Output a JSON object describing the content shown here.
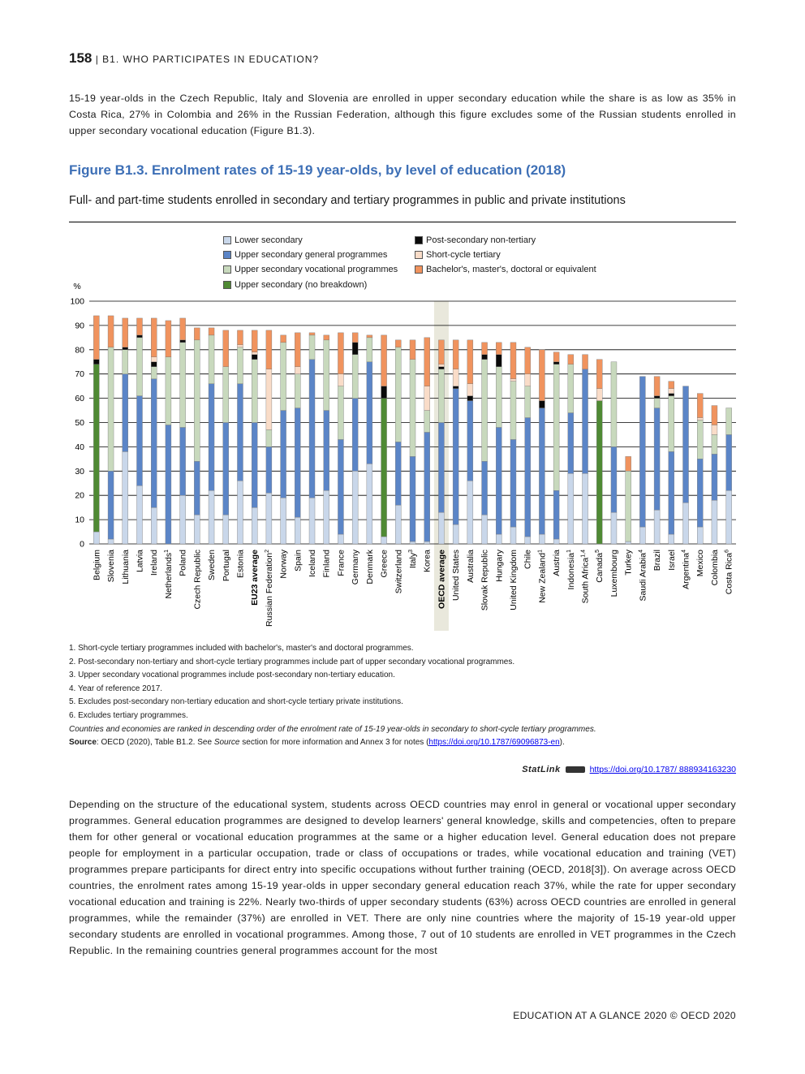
{
  "header": {
    "page_number": "158",
    "section": "| B1. WHO PARTICIPATES IN EDUCATION?"
  },
  "intro_paragraph": "15-19 year-olds in the Czech Republic, Italy and Slovenia are enrolled in upper secondary education while the share is as low as 35% in Costa Rica, 27% in Colombia and 26% in the Russian Federation, although this figure excludes some of the Russian students enrolled in upper secondary vocational education (Figure B1.3).",
  "figure": {
    "title": "Figure B1.3. Enrolment rates of 15-19 year-olds, by level of education (2018)",
    "subtitle": "Full- and part-time students enrolled in secondary and tertiary programmes in public and private institutions"
  },
  "chart_data": {
    "type": "bar",
    "stacked": true,
    "ylabel": "%",
    "ylim": [
      0,
      100
    ],
    "yticks": [
      0,
      10,
      20,
      30,
      40,
      50,
      60,
      70,
      80,
      90,
      100
    ],
    "grid": true,
    "legend_position": "top",
    "highlight_category": "OECD average",
    "categories": [
      "Belgium",
      "Slovenia",
      "Lithuania",
      "Latvia",
      "Ireland",
      "Netherlands",
      "Poland",
      "Czech Republic",
      "Sweden",
      "Portugal",
      "Estonia",
      "EU23 average",
      "Russian Federation",
      "Norway",
      "Spain",
      "Iceland",
      "Finland",
      "France",
      "Germany",
      "Denmark",
      "Greece",
      "Switzerland",
      "Italy",
      "Korea",
      "OECD average",
      "United States",
      "Australia",
      "Slovak Republic",
      "Hungary",
      "United Kingdom",
      "Chile",
      "New Zealand",
      "Austria",
      "Indonesia",
      "South Africa",
      "Canada",
      "Luxembourg",
      "Turkey",
      "Saudi Arabia",
      "Brazil",
      "Israel",
      "Argentina",
      "Mexico",
      "Colombia",
      "Costa Rica"
    ],
    "category_notes": [
      "",
      "",
      "",
      "",
      "",
      "1",
      "",
      "",
      "",
      "",
      "",
      "",
      "2",
      "",
      "",
      "",
      "",
      "",
      "",
      "",
      "",
      "",
      "3",
      "",
      "",
      "",
      "",
      "",
      "",
      "",
      "",
      "1",
      "",
      "1",
      "1,4",
      "5",
      "",
      "",
      "4",
      "",
      "",
      "4",
      "",
      "",
      "6"
    ],
    "bold_categories": [
      "EU23 average",
      "OECD average"
    ],
    "series": [
      {
        "name": "Lower secondary",
        "color": "#c9d7ea",
        "values": [
          5,
          2,
          38,
          24,
          15,
          0,
          20,
          12,
          22,
          12,
          26,
          15,
          21,
          19,
          11,
          19,
          22,
          4,
          30,
          33,
          3,
          16,
          1,
          1,
          13,
          8,
          26,
          12,
          4,
          7,
          3,
          4,
          2,
          29,
          29,
          0,
          13,
          1,
          7,
          14,
          4,
          17,
          7,
          18,
          22
        ]
      },
      {
        "name": "Upper secondary general programmes",
        "color": "#5b85c7",
        "values": [
          0,
          28,
          32,
          37,
          53,
          49,
          28,
          22,
          44,
          38,
          40,
          35,
          19,
          36,
          45,
          57,
          33,
          39,
          30,
          42,
          0,
          26,
          35,
          45,
          37,
          56,
          33,
          22,
          44,
          36,
          49,
          52,
          20,
          25,
          43,
          0,
          27,
          0,
          62,
          42,
          34,
          48,
          28,
          19,
          23
        ]
      },
      {
        "name": "Upper secondary vocational programmes",
        "color": "#c8d9bd",
        "values": [
          0,
          51,
          10,
          24,
          5,
          28,
          35,
          50,
          20,
          23,
          15,
          26,
          7,
          28,
          14,
          10,
          29,
          22,
          18,
          10,
          0,
          39,
          40,
          9,
          22,
          0,
          0,
          42,
          25,
          24,
          13,
          0,
          52,
          20,
          0,
          0,
          35,
          29,
          0,
          4,
          23,
          0,
          16,
          8,
          11
        ]
      },
      {
        "name": "Upper secondary (no breakdown)",
        "color": "#4f8a34",
        "values": [
          69,
          0,
          0,
          0,
          0,
          0,
          0,
          0,
          0,
          0,
          0,
          0,
          0,
          0,
          0,
          0,
          0,
          0,
          0,
          0,
          57,
          0,
          0,
          0,
          0,
          0,
          0,
          0,
          0,
          0,
          0,
          0,
          0,
          0,
          0,
          59,
          0,
          0,
          0,
          0,
          0,
          0,
          0,
          0,
          0
        ]
      },
      {
        "name": "Post-secondary non-tertiary",
        "color": "#0a0a0a",
        "values": [
          2,
          0,
          1,
          1,
          2,
          0,
          1,
          0,
          0,
          0,
          0,
          2,
          0,
          0,
          0,
          0,
          0,
          0,
          5,
          0,
          5,
          0,
          0,
          0,
          1,
          1,
          2,
          2,
          5,
          0,
          0,
          3,
          1,
          0,
          0,
          0,
          0,
          0,
          0,
          1,
          1,
          0,
          0,
          0,
          0
        ]
      },
      {
        "name": "Short-cycle tertiary",
        "color": "#f9dcc8",
        "values": [
          0,
          0,
          0,
          0,
          2,
          0,
          0,
          0,
          0,
          0,
          1,
          1,
          25,
          0,
          3,
          0,
          0,
          5,
          0,
          0,
          0,
          0,
          0,
          10,
          1,
          7,
          5,
          0,
          0,
          1,
          5,
          0,
          0,
          0,
          0,
          5,
          0,
          0,
          0,
          0,
          2,
          0,
          1,
          4,
          0
        ]
      },
      {
        "name": "Bachelor's, master's, doctoral or equivalent",
        "color": "#f0935e",
        "values": [
          18,
          13,
          12,
          7,
          16,
          15,
          9,
          5,
          3,
          15,
          6,
          9,
          16,
          3,
          14,
          1,
          2,
          17,
          4,
          1,
          21,
          3,
          8,
          20,
          10,
          12,
          18,
          5,
          5,
          15,
          11,
          21,
          4,
          4,
          6,
          12,
          0,
          6,
          0,
          8,
          3,
          0,
          10,
          8,
          0
        ]
      }
    ]
  },
  "notes": [
    "1. Short-cycle tertiary programmes included with bachelor's, master's and doctoral programmes.",
    "2. Post-secondary non-tertiary and short-cycle tertiary programmes include part of upper secondary vocational programmes.",
    "3. Upper secondary vocational programmes include post-secondary non-tertiary education.",
    "4. Year of reference 2017.",
    "5. Excludes post-secondary non-tertiary education and short-cycle tertiary private institutions.",
    "6. Excludes tertiary programmes."
  ],
  "ranking_note": "Countries and economies are ranked in descending order of the enrolment rate of 15-19 year-olds in secondary to short-cycle tertiary programmes.",
  "source": {
    "label": "Source",
    "text_before": ": OECD (2020), Table B1.2. See ",
    "italic": "Source",
    "text_after": " section for more information and Annex 3 for notes (",
    "link": "https://doi.org/10.1787/69096873-en",
    "close": ")."
  },
  "statlink": {
    "brand": "StatLink",
    "url": "https://doi.org/10.1787/ 888934163230"
  },
  "body_paragraph": "Depending on the structure of the educational system, students across OECD countries may enrol in general or vocational upper secondary programmes. General education programmes are designed to develop learners' general knowledge, skills and competencies, often to prepare them for other general or vocational education programmes at the same or a higher education level. General education does not prepare people for employment in a particular occupation, trade or class of occupations or trades, while vocational education and training (VET) programmes prepare participants for direct entry into specific occupations without further training (OECD, 2018[3]). On average across OECD countries, the enrolment rates among 15-19 year-olds in upper secondary general education reach 37%, while the rate for upper secondary vocational education and training is 22%. Nearly two-thirds of upper secondary students (63%) across OECD countries are enrolled in general programmes, while the remainder (37%) are enrolled in VET. There are only nine countries where the majority of 15-19 year-old upper secondary students are enrolled in vocational programmes. Among those, 7 out of 10 students are enrolled in VET programmes in the Czech Republic. In the remaining countries general programmes account for the most",
  "footer": "EDUCATION AT A GLANCE 2020 © OECD 2020"
}
